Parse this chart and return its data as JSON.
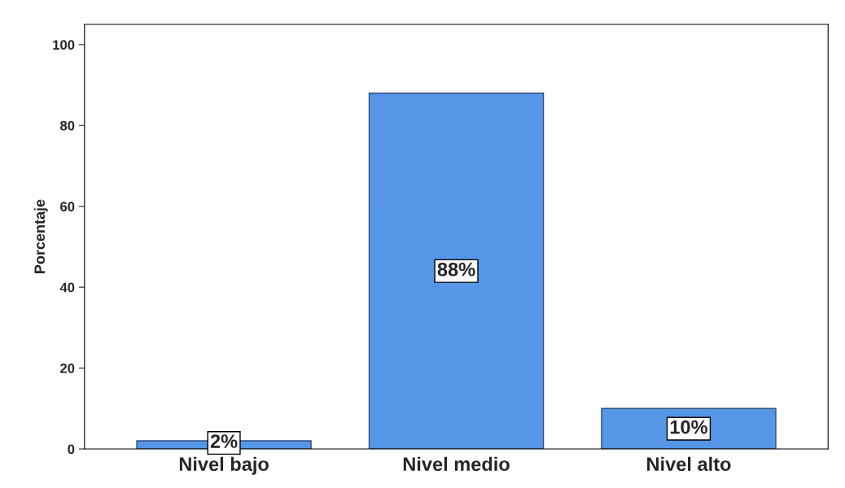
{
  "chart_data": {
    "type": "bar",
    "ylabel": "Porcentaje",
    "categories": [
      "Nivel bajo",
      "Nivel medio",
      "Nivel alto"
    ],
    "values": [
      2,
      88,
      10
    ],
    "value_labels": [
      "2%",
      "88%",
      "10%"
    ],
    "color": "#5596e6",
    "ylim": [
      0,
      105
    ],
    "yticks": [
      0,
      20,
      40,
      60,
      80,
      100
    ],
    "grid": false
  }
}
